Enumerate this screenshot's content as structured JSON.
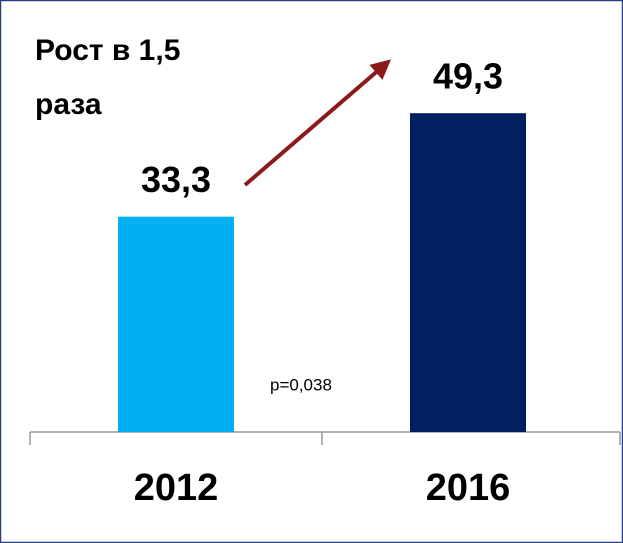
{
  "chart_data": {
    "type": "bar",
    "categories": [
      "2012",
      "2016"
    ],
    "values": [
      33.3,
      49.3
    ],
    "value_labels": [
      "33,3",
      "49,3"
    ],
    "colors": [
      "#00b0f0",
      "#002060"
    ],
    "ylim": [
      0,
      60
    ],
    "annotations": [
      "Рост в 1,5",
      "раза",
      "p=0,038"
    ]
  }
}
